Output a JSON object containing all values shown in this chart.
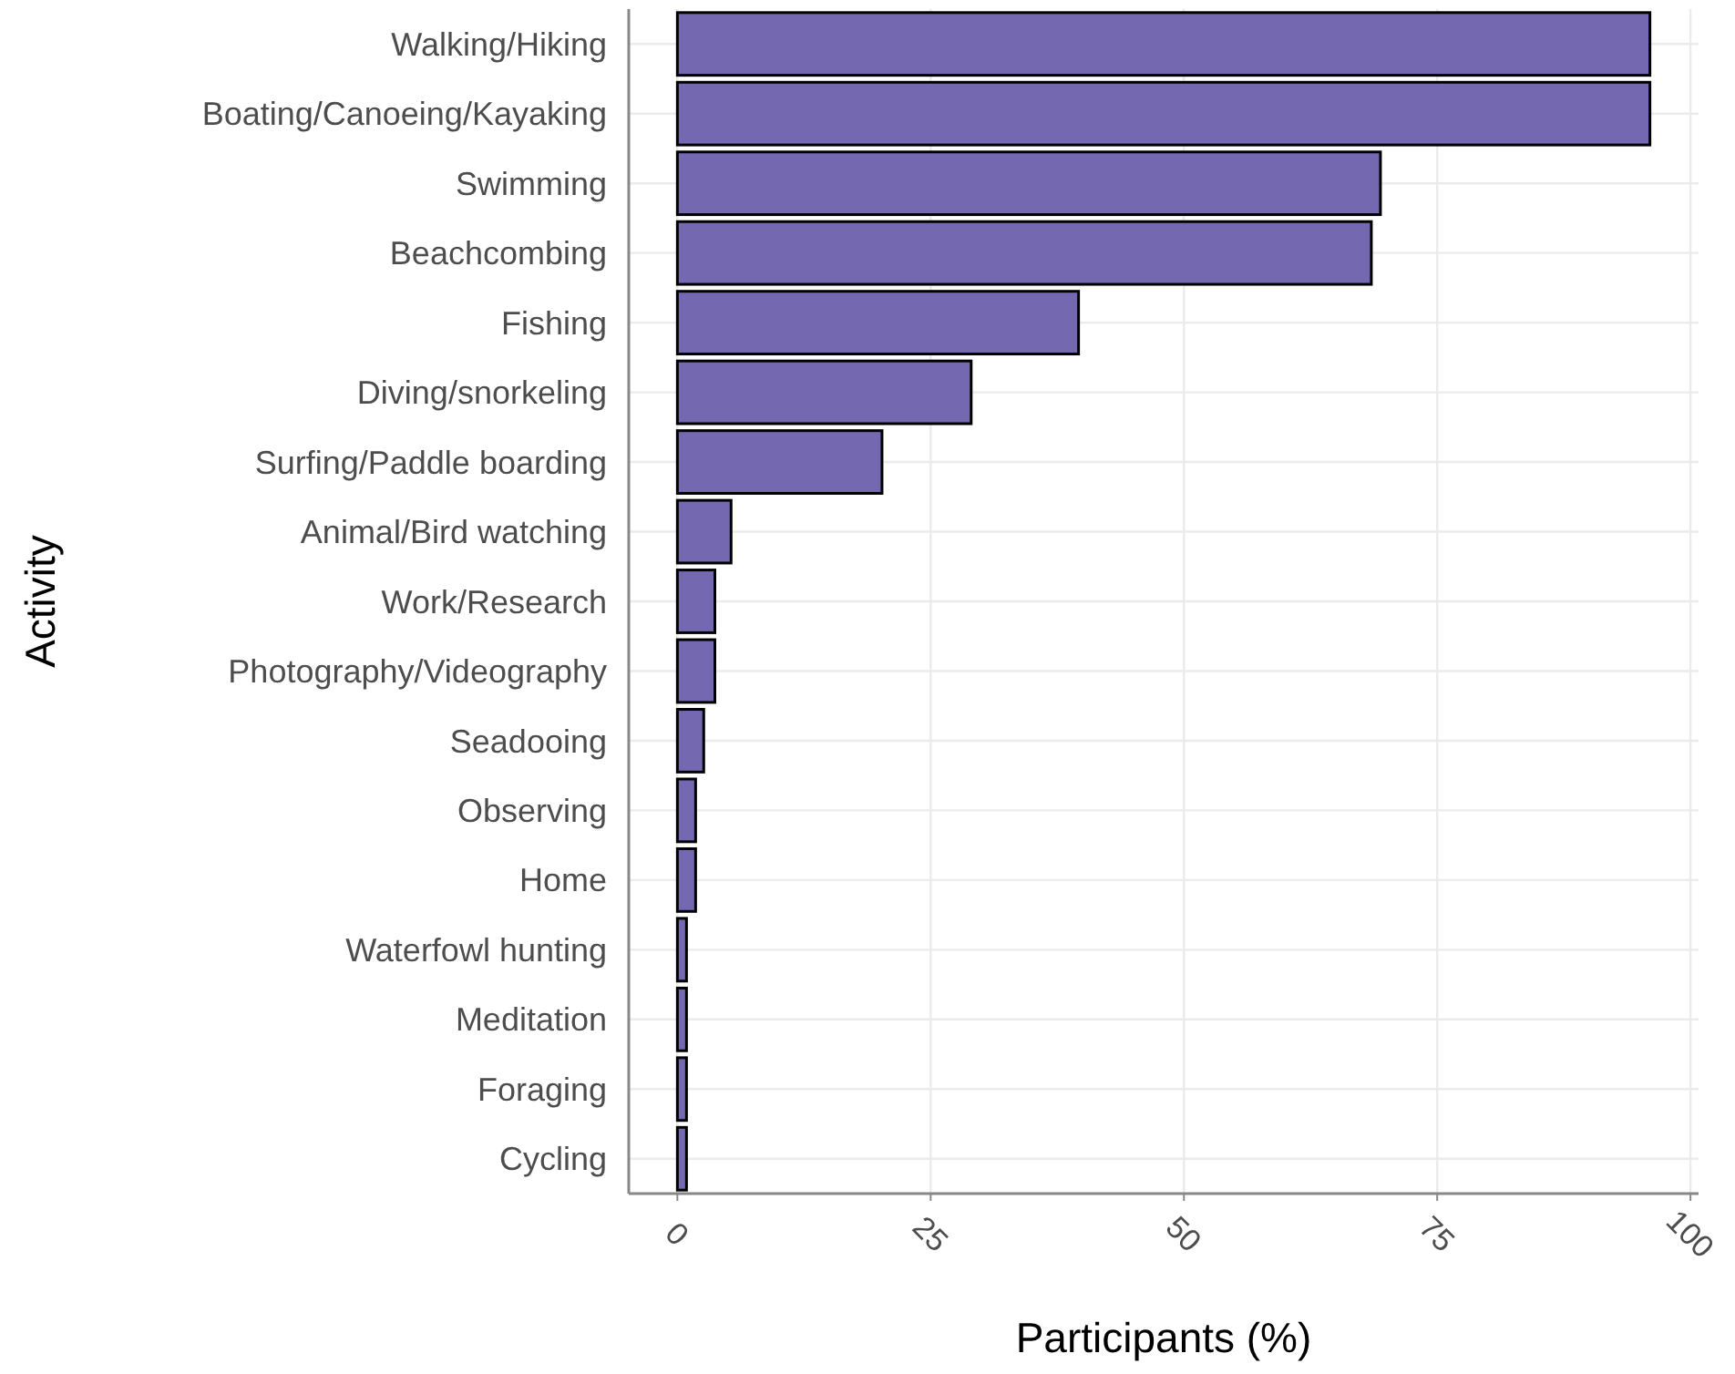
{
  "chart_data": {
    "type": "bar",
    "orientation": "horizontal",
    "xlabel": "Participants (%)",
    "ylabel": "Activity",
    "categories": [
      "Walking/Hiking",
      "Boating/Canoeing/Kayaking",
      "Swimming",
      "Beachcombing",
      "Fishing",
      "Diving/snorkeling",
      "Surfing/Paddle boarding",
      "Animal/Bird watching",
      "Work/Research",
      "Photography/Videography",
      "Seadooing",
      "Observing",
      "Home",
      "Waterfowl hunting",
      "Meditation",
      "Foraging",
      "Cycling"
    ],
    "values": [
      96,
      96,
      69.4,
      68.5,
      39.6,
      29,
      20.2,
      5.3,
      3.7,
      3.7,
      2.6,
      1.8,
      1.8,
      0.9,
      0.9,
      0.9,
      0.9
    ],
    "color": "#7468b0",
    "xlim": [
      -4.8,
      100.8
    ],
    "xticks": [
      0,
      25,
      50,
      75,
      100
    ],
    "grid": true
  }
}
